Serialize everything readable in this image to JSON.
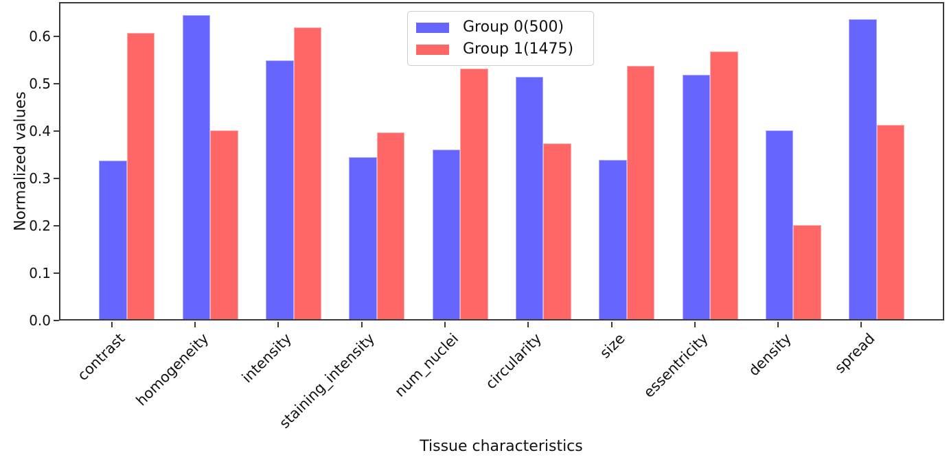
{
  "chart_data": {
    "type": "bar",
    "title": "",
    "xlabel": "Tissue characteristics",
    "ylabel": "Normalized values",
    "categories": [
      "contrast",
      "homogeneity",
      "intensity",
      "staining_intensity",
      "num_nuclei",
      "circularity",
      "size",
      "essentricity",
      "density",
      "spread"
    ],
    "series": [
      {
        "name": "Group 0(500)",
        "color": "#6666ff",
        "values": [
          0.335,
          0.641,
          0.546,
          0.342,
          0.358,
          0.511,
          0.336,
          0.516,
          0.399,
          0.633
        ]
      },
      {
        "name": "Group 1(1475)",
        "color": "#ff6666",
        "values": [
          0.604,
          0.398,
          0.615,
          0.394,
          0.529,
          0.371,
          0.534,
          0.565,
          0.199,
          0.41
        ]
      }
    ],
    "ylim": [
      0,
      0.672
    ],
    "yticks": [
      "0.0",
      "0.1",
      "0.2",
      "0.3",
      "0.4",
      "0.5",
      "0.6"
    ],
    "x_tick_rotation_deg": 45,
    "legend_position": "upper center",
    "grid": false,
    "axis_color": "#3a3a3a"
  }
}
